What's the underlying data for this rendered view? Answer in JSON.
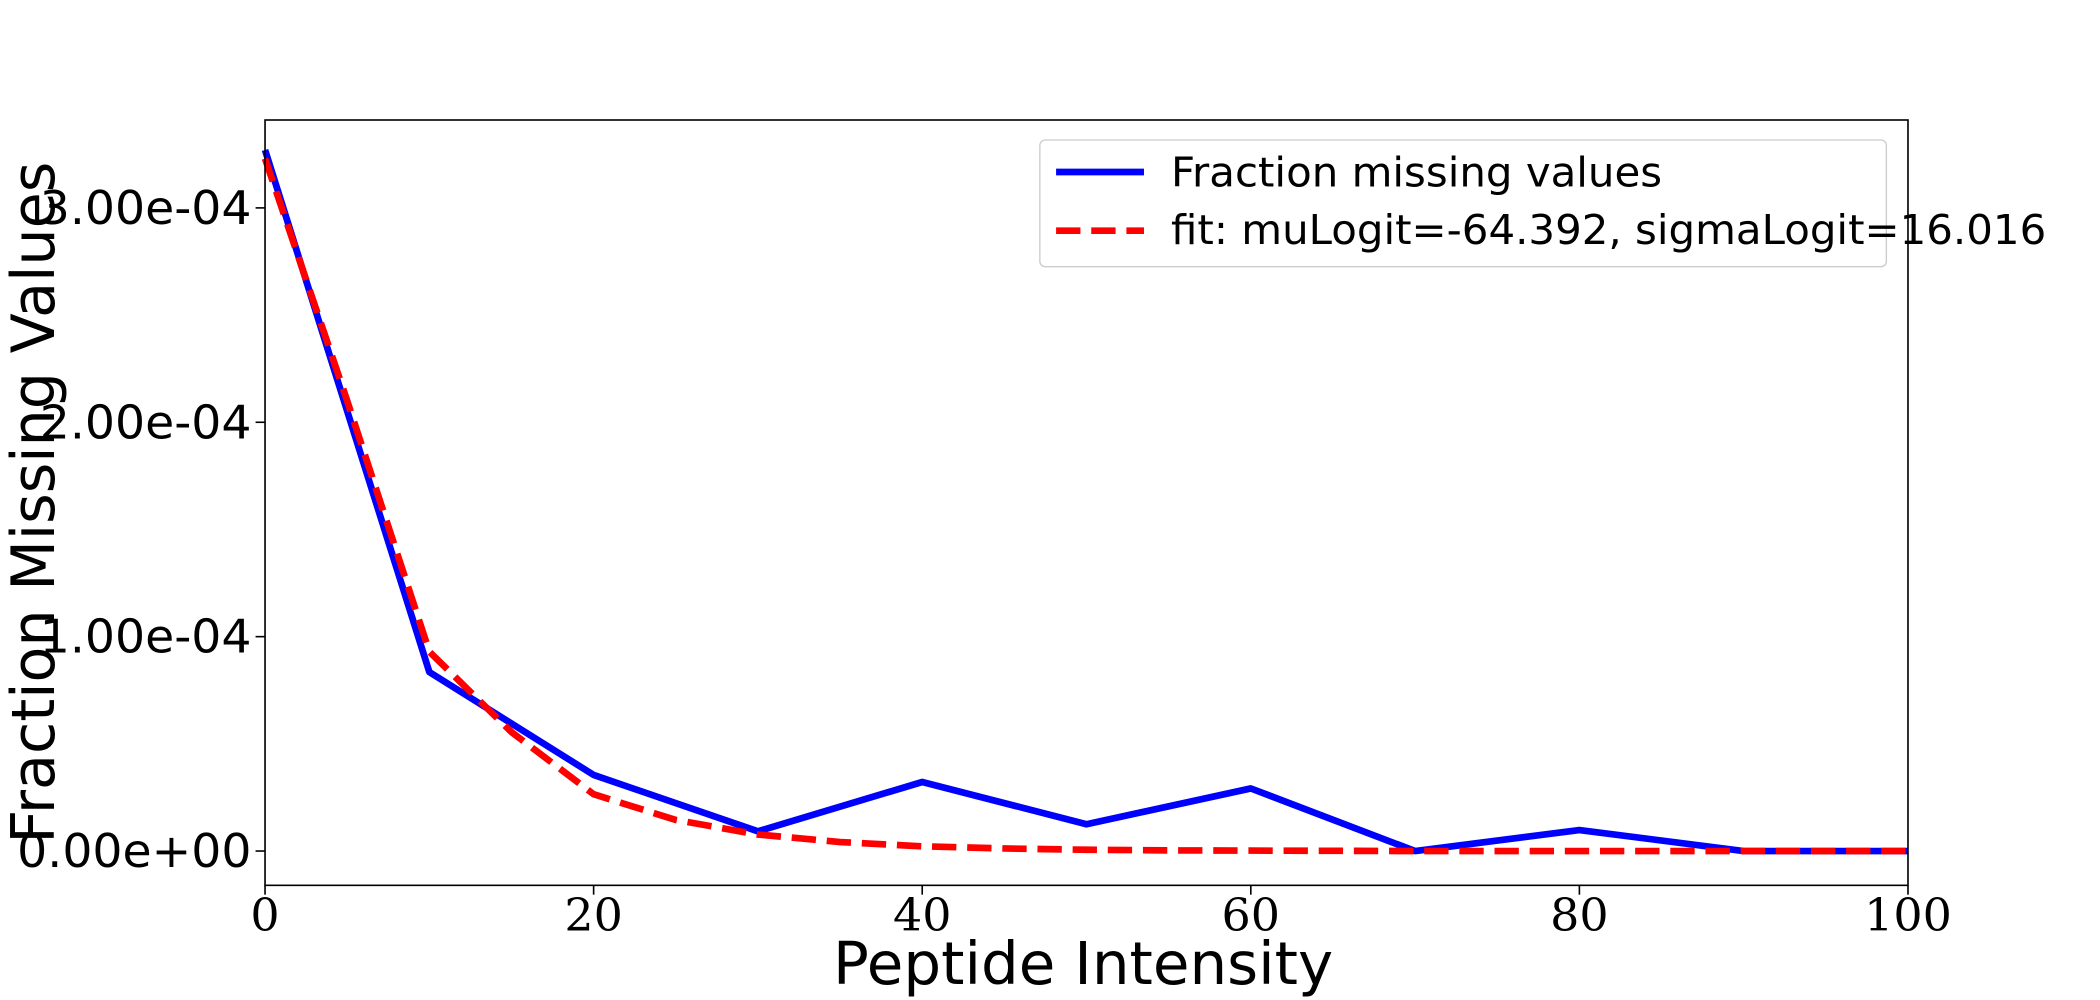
{
  "chart_data": {
    "type": "line",
    "title": "",
    "xlabel": "Peptide Intensity",
    "ylabel": "Fraction Missing Values",
    "xlim": [
      0,
      100
    ],
    "ylim": [
      -1.6e-05,
      0.000341
    ],
    "xticks": [
      0,
      20,
      40,
      60,
      80,
      100
    ],
    "xtick_labels": [
      "0",
      "20",
      "40",
      "60",
      "80",
      "100"
    ],
    "yticks": [
      0,
      0.0001,
      0.0002,
      0.0003
    ],
    "ytick_labels": [
      "0.00e+00",
      "1.00e-04",
      "2.00e-04",
      "3.00e-04"
    ],
    "grid": false,
    "legend_position": "top-right",
    "series": [
      {
        "name": "Fraction missing values",
        "color": "#0000ff",
        "style": "solid",
        "x": [
          0,
          10,
          20,
          30,
          40,
          50,
          60,
          70,
          80,
          90,
          100
        ],
        "y": [
          0.000327,
          8.35e-05,
          3.55e-05,
          9.2e-06,
          3.22e-05,
          1.25e-05,
          2.92e-05,
          0.0,
          9.8e-06,
          0.0,
          0.0
        ]
      },
      {
        "name": "fit: muLogit=-64.392, sigmaLogit=16.016",
        "color": "#ff0000",
        "style": "dashed",
        "x": [
          0,
          5,
          10,
          15,
          20,
          25,
          30,
          35,
          40,
          45,
          50,
          55,
          60,
          65,
          70,
          75,
          80,
          85,
          90,
          95,
          100
        ],
        "y": [
          0.000323,
          0.00021,
          9.3e-05,
          5.55e-05,
          2.65e-05,
          1.45e-05,
          7.7e-06,
          4.2e-06,
          2.2e-06,
          1.2e-06,
          6e-07,
          3e-07,
          2e-07,
          1e-07,
          0.0,
          0.0,
          0.0,
          0.0,
          0.0,
          0.0,
          0.0
        ]
      }
    ]
  }
}
